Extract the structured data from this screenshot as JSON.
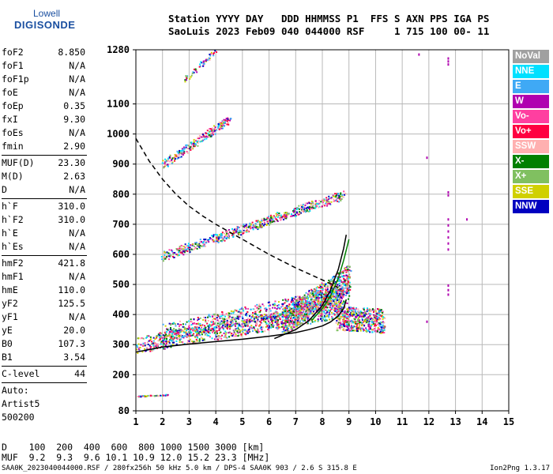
{
  "logo": {
    "line1": "Lowell",
    "line2": "DIGISONDE"
  },
  "header": {
    "line1": "Station YYYY DAY   DDD HHMMSS P1  FFS S AXN PPS IGA PS",
    "line2": "SaoLuis 2023 Feb09 040 044000 RSF     1 715 100 00- 11"
  },
  "params": [
    {
      "name": "foF2",
      "value": "8.850"
    },
    {
      "name": "foF1",
      "value": "N/A"
    },
    {
      "name": "foF1p",
      "value": "N/A"
    },
    {
      "name": "foE",
      "value": "N/A"
    },
    {
      "name": "foEp",
      "value": "0.35"
    },
    {
      "name": "fxI",
      "value": "9.30"
    },
    {
      "name": "foEs",
      "value": "N/A"
    },
    {
      "name": "fmin",
      "value": "2.90"
    },
    {
      "sep": true
    },
    {
      "name": "MUF(D)",
      "value": "23.30"
    },
    {
      "name": "M(D)",
      "value": "2.63"
    },
    {
      "name": "D",
      "value": "N/A"
    },
    {
      "sep": true
    },
    {
      "name": "h`F",
      "value": "310.0"
    },
    {
      "name": "h`F2",
      "value": "310.0"
    },
    {
      "name": "h`E",
      "value": "N/A"
    },
    {
      "name": "h`Es",
      "value": "N/A"
    },
    {
      "sep": true
    },
    {
      "name": "hmF2",
      "value": "421.8"
    },
    {
      "name": "hmF1",
      "value": "N/A"
    },
    {
      "name": "hmE",
      "value": "110.0"
    },
    {
      "name": "yF2",
      "value": "125.5"
    },
    {
      "name": "yF1",
      "value": "N/A"
    },
    {
      "name": "yE",
      "value": "20.0"
    },
    {
      "name": "B0",
      "value": "107.3"
    },
    {
      "name": "B1",
      "value": "3.54"
    },
    {
      "sep": true
    },
    {
      "name": "C-level",
      "value": "44"
    },
    {
      "sep": true
    },
    {
      "name": "Auto:",
      "value": ""
    },
    {
      "name": "Artist5",
      "value": ""
    },
    {
      "name": "500200",
      "value": ""
    }
  ],
  "legend": [
    {
      "label": "NoVal",
      "color": "#a0a0a0"
    },
    {
      "label": "NNE",
      "color": "#00e0ff"
    },
    {
      "label": "E",
      "color": "#3fa9f5"
    },
    {
      "label": "W",
      "color": "#b000b0"
    },
    {
      "label": "Vo-",
      "color": "#ff3fa0"
    },
    {
      "label": "Vo+",
      "color": "#ff0040"
    },
    {
      "label": "SSW",
      "color": "#ffb0b0"
    },
    {
      "label": "X-",
      "color": "#008000"
    },
    {
      "label": "X+",
      "color": "#80c060"
    },
    {
      "label": "SSE",
      "color": "#d0d000"
    },
    {
      "label": "NNW",
      "color": "#0000c0"
    }
  ],
  "footer": {
    "line1": "D    100  200  400  600  800 1000 1500 3000 [km]",
    "line2": "MUF  9.2  9.3  9.6 10.1 10.9 12.0 15.2 23.3 [MHz]"
  },
  "status": "SAA0K_2023040044000.RSF / 280fx256h 50 kHz 5.0 km / DPS-4 SAA0K 903 / 2.6 S 315.8 E",
  "version": "Ion2Png 1.3.17",
  "chart_data": {
    "type": "scatter",
    "title": "",
    "xlabel": "",
    "ylabel": "",
    "xlim": [
      1,
      15
    ],
    "ylim": [
      80,
      1280
    ],
    "x_ticks": [
      1,
      2,
      3,
      4,
      5,
      6,
      7,
      8,
      9,
      10,
      11,
      12,
      13,
      14,
      15
    ],
    "y_ticks": [
      80,
      200,
      300,
      400,
      500,
      600,
      700,
      800,
      900,
      1000,
      1100,
      1280
    ],
    "grid": true,
    "curves": [
      {
        "name": "",
        "style": "solid",
        "color": "#000000",
        "x": [
          1.0,
          2.0,
          3.0,
          4.0,
          5.0,
          6.0,
          7.0,
          7.5,
          8.0,
          8.3,
          8.6,
          8.8,
          8.9
        ],
        "y": [
          275,
          292,
          302,
          310,
          318,
          328,
          340,
          350,
          362,
          375,
          395,
          420,
          450
        ]
      },
      {
        "name": "",
        "style": "solid",
        "color": "#000000",
        "x": [
          6.2,
          7.0,
          7.5,
          8.0,
          8.3,
          8.6,
          8.8,
          8.9
        ],
        "y": [
          320,
          350,
          380,
          430,
          480,
          550,
          620,
          665
        ]
      },
      {
        "name": "",
        "style": "dashed",
        "color": "#000000",
        "x": [
          1.0,
          1.5,
          2.0,
          2.5,
          3.0,
          3.5,
          4.0,
          5.0,
          6.0,
          7.0,
          8.0,
          8.6
        ],
        "y": [
          985,
          910,
          850,
          800,
          760,
          728,
          700,
          650,
          600,
          555,
          515,
          490
        ]
      },
      {
        "name": "",
        "style": "solid",
        "color": "#008000",
        "x": [
          7.6,
          8.0,
          8.3,
          8.6,
          8.8,
          9.0
        ],
        "y": [
          380,
          420,
          460,
          520,
          580,
          650
        ]
      }
    ],
    "traces": [
      {
        "name": "F1 O-trace",
        "x_start": 1.0,
        "x_end": 8.8,
        "y_start": 300,
        "y_end": 420,
        "spread": 55,
        "count": 900
      },
      {
        "name": "F1 X-trace",
        "x_start": 2.0,
        "x_end": 9.0,
        "y_start": 340,
        "y_end": 470,
        "spread": 60,
        "count": 700
      },
      {
        "name": "F2 dense",
        "x_start": 6.5,
        "x_end": 9.0,
        "y_start": 380,
        "y_end": 520,
        "spread": 90,
        "count": 900
      },
      {
        "name": "2F multihop",
        "x_start": 2.0,
        "x_end": 8.8,
        "y_start": 595,
        "y_end": 800,
        "spread": 30,
        "count": 600
      },
      {
        "name": "3F multihop",
        "x_start": 2.0,
        "x_end": 4.5,
        "y_start": 900,
        "y_end": 1050,
        "spread": 25,
        "count": 250
      },
      {
        "name": "4F multihop",
        "x_start": 2.8,
        "x_end": 4.0,
        "y_start": 1180,
        "y_end": 1280,
        "spread": 15,
        "count": 60
      },
      {
        "name": "E-layer echoes",
        "x_start": 1.0,
        "x_end": 2.2,
        "y_start": 130,
        "y_end": 135,
        "spread": 3,
        "count": 40
      },
      {
        "name": "Oblique spread",
        "x_start": 8.5,
        "x_end": 10.3,
        "y_start": 390,
        "y_end": 380,
        "spread": 80,
        "count": 500
      }
    ],
    "isolated": [
      {
        "x": 12.7,
        "y": 1255
      },
      {
        "x": 12.7,
        "y": 1245
      },
      {
        "x": 12.7,
        "y": 1235
      },
      {
        "x": 12.7,
        "y": 810
      },
      {
        "x": 12.7,
        "y": 800
      },
      {
        "x": 12.7,
        "y": 720
      },
      {
        "x": 12.7,
        "y": 700
      },
      {
        "x": 12.7,
        "y": 680
      },
      {
        "x": 12.7,
        "y": 660
      },
      {
        "x": 12.7,
        "y": 640
      },
      {
        "x": 12.7,
        "y": 620
      },
      {
        "x": 12.7,
        "y": 500
      },
      {
        "x": 12.7,
        "y": 485
      },
      {
        "x": 12.7,
        "y": 470
      },
      {
        "x": 11.6,
        "y": 1268
      },
      {
        "x": 11.9,
        "y": 925
      },
      {
        "x": 13.4,
        "y": 720
      },
      {
        "x": 11.9,
        "y": 380
      }
    ]
  }
}
